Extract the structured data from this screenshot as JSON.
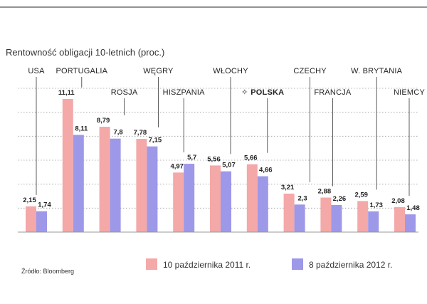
{
  "chart_data": {
    "type": "bar",
    "title": "Rentowność obligacji 10-letnich (proc.)",
    "source": "Źródło: Bloomberg",
    "categories": [
      "USA",
      "PORTUGALIA",
      "ROSJA",
      "WĘGRY",
      "HISZPANIA",
      "WŁOCHY",
      "POLSKA",
      "CZECHY",
      "FRANCJA",
      "W. BRYTANIA",
      "NIEMCY"
    ],
    "highlight_category": "POLSKA",
    "series": [
      {
        "name": "10 października 2011 r.",
        "color": "#f4a8a8",
        "values": [
          2.15,
          11.11,
          8.79,
          7.78,
          4.97,
          5.56,
          5.66,
          3.21,
          2.88,
          2.59,
          2.08
        ],
        "labels": [
          "2,15",
          "11,11",
          "8,79",
          "7,78",
          "4,97",
          "5,56",
          "5,66",
          "3,21",
          "2,88",
          "2,59",
          "2,08"
        ]
      },
      {
        "name": "8 października 2012 r.",
        "color": "#9d98e8",
        "values": [
          1.74,
          8.11,
          7.8,
          7.15,
          5.7,
          5.07,
          4.66,
          2.3,
          2.26,
          1.73,
          1.48
        ],
        "labels": [
          "1,74",
          "8,11",
          "7,8",
          "7,15",
          "5,7",
          "5,07",
          "4,66",
          "2,3",
          "2,26",
          "1,73",
          "1,48"
        ]
      }
    ],
    "ylim": [
      0,
      12
    ],
    "grid": true,
    "legend_position": "bottom-right",
    "highlight_color": "#e0303a"
  }
}
